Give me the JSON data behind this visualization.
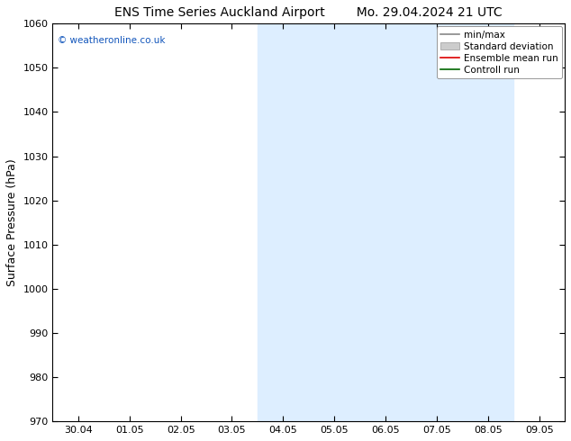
{
  "title_left": "ENS Time Series Auckland Airport",
  "title_right": "Mo. 29.04.2024 21 UTC",
  "ylabel": "Surface Pressure (hPa)",
  "ylim": [
    970,
    1060
  ],
  "yticks": [
    970,
    980,
    990,
    1000,
    1010,
    1020,
    1030,
    1040,
    1050,
    1060
  ],
  "xtick_labels": [
    "30.04",
    "01.05",
    "02.05",
    "03.05",
    "04.05",
    "05.05",
    "06.05",
    "07.05",
    "08.05",
    "09.05"
  ],
  "xtick_positions": [
    0,
    1,
    2,
    3,
    4,
    5,
    6,
    7,
    8,
    9
  ],
  "xlim": [
    -0.5,
    9.5
  ],
  "shaded_bands": [
    {
      "x_start": 3.5,
      "x_end": 6.5
    },
    {
      "x_start": 6.5,
      "x_end": 8.5
    }
  ],
  "shade_color": "#ddeeff",
  "watermark_text": "© weatheronline.co.uk",
  "watermark_color": "#1155bb",
  "legend_items": [
    {
      "label": "min/max",
      "color": "#888888",
      "style": "line"
    },
    {
      "label": "Standard deviation",
      "color": "#cccccc",
      "style": "rect"
    },
    {
      "label": "Ensemble mean run",
      "color": "#dd0000",
      "style": "line"
    },
    {
      "label": "Controll run",
      "color": "#006600",
      "style": "line"
    }
  ],
  "bg_color": "#ffffff",
  "font_family": "DejaVu Sans",
  "title_fontsize": 10,
  "tick_fontsize": 8,
  "ylabel_fontsize": 9,
  "legend_fontsize": 7.5
}
